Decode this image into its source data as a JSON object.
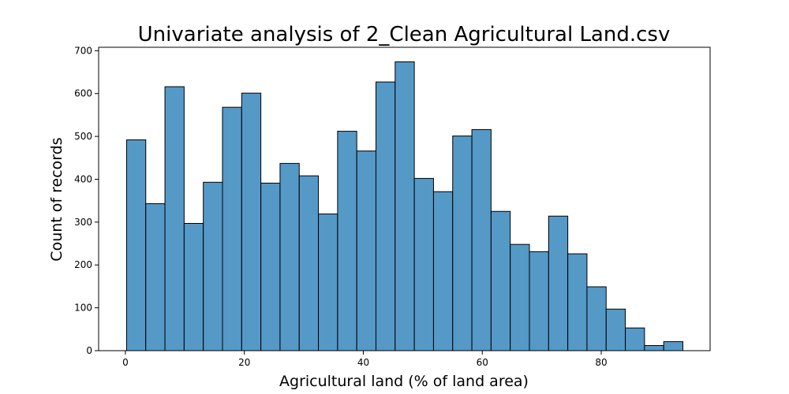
{
  "chart_data": {
    "type": "bar",
    "title": "Univariate analysis of 2_Clean Agricultural Land.csv",
    "xlabel": "Agricultural land (% of land area)",
    "ylabel": "Count of records",
    "bin_start": 0.2,
    "bin_width": 3.225,
    "values": [
      492,
      343,
      616,
      297,
      393,
      568,
      601,
      391,
      437,
      408,
      319,
      512,
      466,
      627,
      674,
      402,
      371,
      501,
      516,
      325,
      248,
      231,
      314,
      226,
      149,
      97,
      53,
      12,
      21
    ],
    "xlim": [
      -4.5,
      98.3
    ],
    "ylim": [
      0,
      708
    ],
    "xticks": [
      0,
      20,
      40,
      60,
      80
    ],
    "yticks": [
      0,
      100,
      200,
      300,
      400,
      500,
      600,
      700
    ],
    "bar_color": "#5599c7",
    "grid": false,
    "legend": "none"
  }
}
